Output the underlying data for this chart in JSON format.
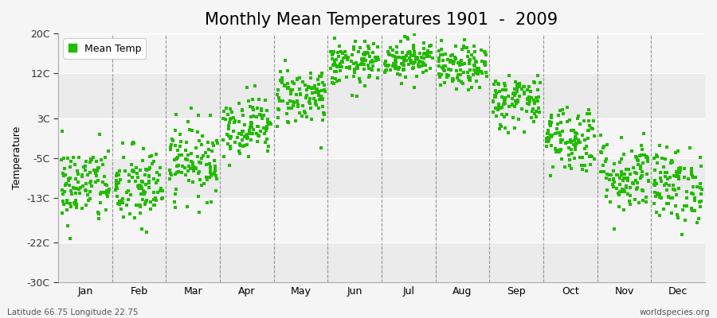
{
  "title": "Monthly Mean Temperatures 1901  -  2009",
  "ylabel": "Temperature",
  "ylim": [
    -30,
    20
  ],
  "yticks": [
    -30,
    -22,
    -13,
    -5,
    3,
    12,
    20
  ],
  "ytick_labels": [
    "-30C",
    "-22C",
    "-13C",
    "-5C",
    "3C",
    "12C",
    "20C"
  ],
  "months": [
    "Jan",
    "Feb",
    "Mar",
    "Apr",
    "May",
    "Jun",
    "Jul",
    "Aug",
    "Sep",
    "Oct",
    "Nov",
    "Dec"
  ],
  "month_means": [
    -10.5,
    -11.0,
    -5.5,
    1.5,
    7.5,
    13.8,
    15.0,
    13.0,
    6.5,
    -1.0,
    -8.5,
    -10.5
  ],
  "month_stds": [
    4.0,
    4.2,
    3.8,
    3.0,
    3.0,
    2.2,
    2.0,
    2.2,
    2.8,
    3.5,
    3.8,
    3.8
  ],
  "n_years": 109,
  "marker_color": "#22bb00",
  "marker_size": 2.5,
  "bg_color": "#f5f5f5",
  "plot_bg_color": "#ffffff",
  "band_colors": [
    "#ebebeb",
    "#f5f5f5"
  ],
  "footer_left": "Latitude 66.75 Longitude 22.75",
  "footer_right": "worldspecies.org",
  "legend_label": "Mean Temp",
  "title_fontsize": 15,
  "label_fontsize": 9,
  "tick_fontsize": 9,
  "seed": 42
}
